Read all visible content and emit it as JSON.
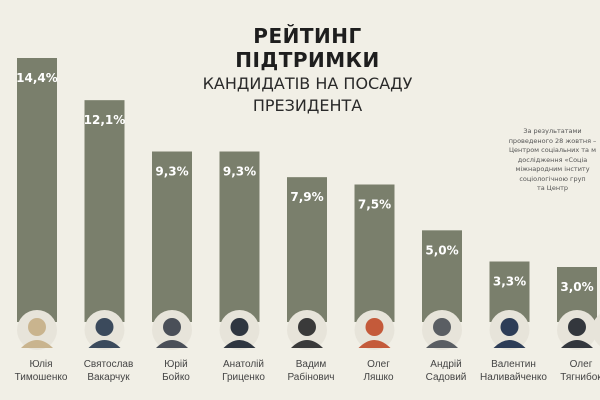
{
  "title": {
    "line1": "РЕЙТИНГ ПІДТРИМКИ",
    "line2": "КАНДИДАТІВ НА ПОСАДУ",
    "line3": "ПРЕЗИДЕНТА"
  },
  "note": [
    "За результатами",
    "проведеного 28 жовтня –",
    "Центром соціальних та м",
    "дослідження «Соціа",
    "міжнародним інститу",
    "соціологічною груп",
    "та Центр"
  ],
  "colors": {
    "background": "#f1efe6",
    "bar": "#7a7f6c",
    "value_text": "#ffffff",
    "label_text": "#444444"
  },
  "chart_data": {
    "type": "bar",
    "title": "РЕЙТИНГ ПІДТРИМКИ КАНДИДАТІВ НА ПОСАДУ ПРЕЗИДЕНТА",
    "categories": [
      [
        "Юлія",
        "Тимошенко"
      ],
      [
        "Святослав",
        "Вакарчук"
      ],
      [
        "Юрій",
        "Бойко"
      ],
      [
        "Анатолій",
        "Гриценко"
      ],
      [
        "Вадим",
        "Рабінович"
      ],
      [
        "Олег",
        "Ляшко"
      ],
      [
        "Андрій",
        "Садовий"
      ],
      [
        "Валентин",
        "Наливайченко"
      ],
      [
        "Олег",
        "Тягнибок"
      ]
    ],
    "values": [
      14.4,
      12.1,
      9.3,
      9.3,
      7.9,
      7.5,
      5.0,
      3.3,
      3.0
    ],
    "value_labels": [
      "14,4%",
      "12,1%",
      "9,3%",
      "9,3%",
      "7,9%",
      "7,5%",
      "5,0%",
      "3,3%",
      "3,0%"
    ],
    "ylim": [
      0,
      14.4
    ],
    "grid": false,
    "legend": "none"
  }
}
